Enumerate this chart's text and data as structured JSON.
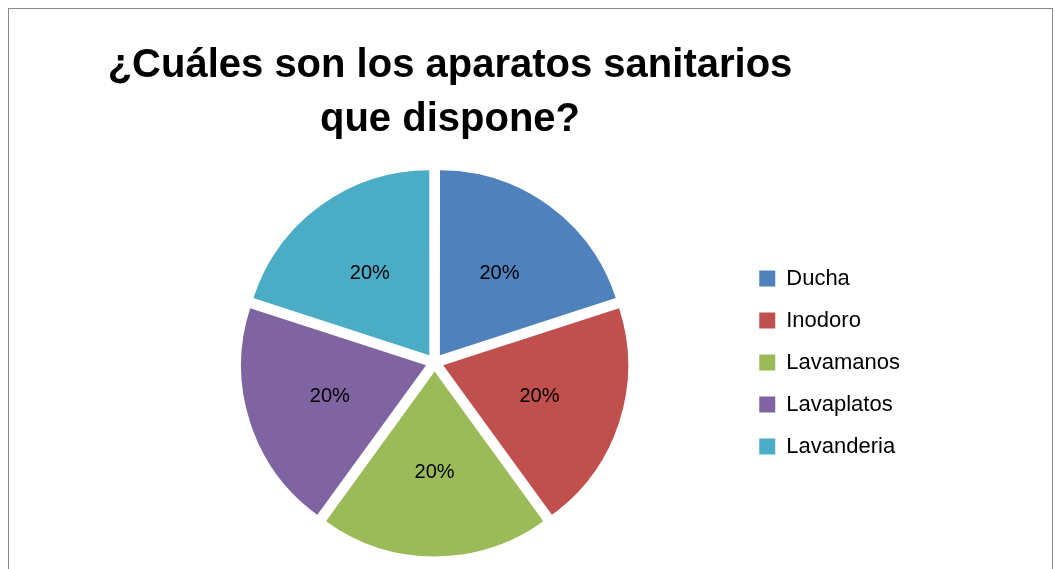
{
  "chart_data": {
    "type": "pie",
    "title": "¿Cuáles son los aparatos sanitarios que dispone?",
    "categories": [
      "Ducha",
      "Inodoro",
      "Lavamanos",
      "Lavaplatos",
      "Lavanderia"
    ],
    "values": [
      20,
      20,
      20,
      20,
      20
    ],
    "value_labels": [
      "20%",
      "20%",
      "20%",
      "20%",
      "20%"
    ],
    "colors": [
      "#4f81bd",
      "#c0504d",
      "#9bbb59",
      "#8064a2",
      "#4bacc6"
    ],
    "legend": "right"
  }
}
